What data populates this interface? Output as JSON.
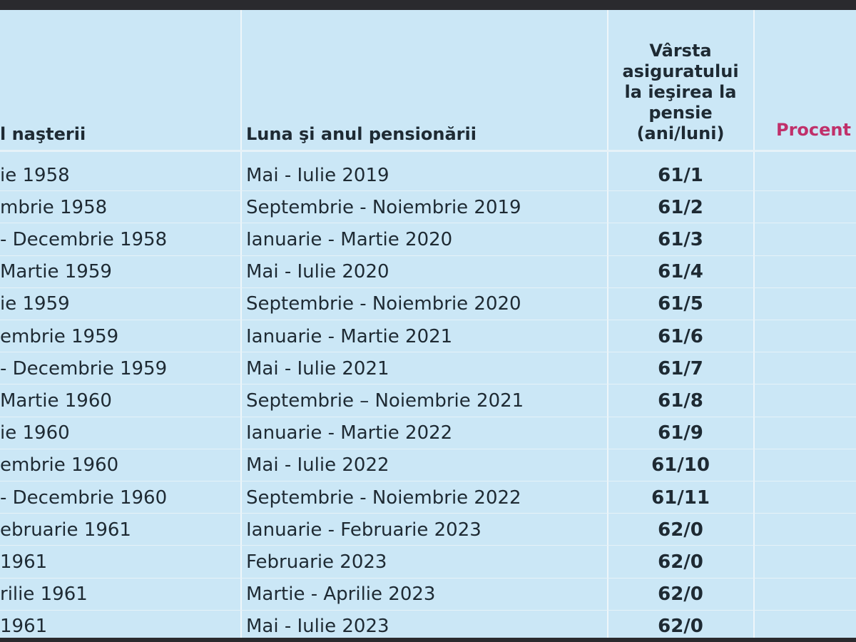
{
  "table": {
    "header": [
      "l naşterii",
      "Luna şi anul pensionării",
      [
        "Vârsta",
        "asiguratului",
        "la ieşirea la",
        "pensie",
        "(ani/luni)"
      ],
      "Procent"
    ],
    "rows": [
      [
        "ie 1958",
        "Mai - Iulie 2019",
        "61/1"
      ],
      [
        "mbrie 1958",
        "Septembrie - Noiembrie 2019",
        "61/2"
      ],
      [
        "- Decembrie 1958",
        "Ianuarie - Martie 2020",
        "61/3"
      ],
      [
        "Martie 1959",
        "Mai - Iulie 2020",
        "61/4"
      ],
      [
        "ie 1959",
        "Septembrie - Noiembrie 2020",
        "61/5"
      ],
      [
        "embrie 1959",
        "Ianuarie - Martie 2021",
        "61/6"
      ],
      [
        "- Decembrie 1959",
        "Mai - Iulie 2021",
        "61/7"
      ],
      [
        "Martie 1960",
        "Septembrie – Noiembrie 2021",
        "61/8"
      ],
      [
        "ie 1960",
        "Ianuarie - Martie 2022",
        "61/9"
      ],
      [
        "embrie 1960",
        "Mai - Iulie 2022",
        "61/10"
      ],
      [
        "- Decembrie 1960",
        "Septembrie - Noiembrie 2022",
        "61/11"
      ],
      [
        "ebruarie 1961",
        "Ianuarie - Februarie 2023",
        "62/0"
      ],
      [
        "1961",
        "Februarie 2023",
        "62/0"
      ],
      [
        "rilie 1961",
        "Martie - Aprilie 2023",
        "62/0"
      ],
      [
        "1961",
        "Mai - Iulie 2023",
        "62/0"
      ]
    ]
  }
}
